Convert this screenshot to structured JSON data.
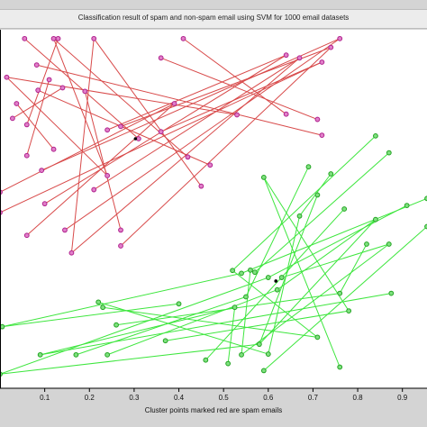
{
  "window": {
    "title": "Classification result of spam and non-spam email using SVM for 1000 email datasets"
  },
  "chart_data": {
    "type": "scatter",
    "title": "Classification result of spam and non-spam email using SVM for 1000 email datasets",
    "xlabel": "Cluster points marked red are spam emails",
    "ylabel": "",
    "xlim": [
      0.0,
      0.955
    ],
    "ylim": [
      0.0,
      1.0
    ],
    "xticks": [
      "0.1",
      "0.2",
      "0.3",
      "0.4",
      "0.5",
      "0.6",
      "0.7",
      "0.8",
      "0.9"
    ],
    "grid": false,
    "colors": {
      "spam_line": "#d84a4a",
      "spam_point": "#b0208e",
      "ham_line": "#3ee63e",
      "ham_point": "#22a322",
      "centroid": "#000000"
    },
    "series": [
      {
        "class": "spam",
        "points": [
          [
            0.055,
            0.985
          ],
          [
            0.13,
            0.985
          ],
          [
            0.21,
            0.985
          ],
          [
            0.12,
            0.985
          ],
          [
            0.41,
            0.985
          ],
          [
            0.76,
            0.985
          ],
          [
            0.74,
            0.96
          ],
          [
            0.082,
            0.91
          ],
          [
            0.64,
            0.938
          ],
          [
            0.36,
            0.93
          ],
          [
            0.67,
            0.93
          ],
          [
            0.72,
            0.918
          ],
          [
            0.015,
            0.875
          ],
          [
            0.037,
            0.8
          ],
          [
            0.11,
            0.868
          ],
          [
            0.14,
            0.845
          ],
          [
            0.085,
            0.838
          ],
          [
            0.19,
            0.835
          ],
          [
            0.39,
            0.8
          ],
          [
            0.64,
            0.77
          ],
          [
            0.53,
            0.768
          ],
          [
            0.71,
            0.755
          ],
          [
            0.028,
            0.758
          ],
          [
            0.06,
            0.74
          ],
          [
            0.27,
            0.735
          ],
          [
            0.24,
            0.725
          ],
          [
            0.36,
            0.72
          ],
          [
            0.31,
            0.7
          ],
          [
            0.72,
            0.71
          ],
          [
            0.12,
            0.67
          ],
          [
            0.06,
            0.652
          ],
          [
            0.42,
            0.648
          ],
          [
            0.47,
            0.625
          ],
          [
            0.093,
            0.61
          ],
          [
            0.45,
            0.565
          ],
          [
            0.0,
            0.548
          ],
          [
            0.21,
            0.555
          ],
          [
            0.0,
            0.49
          ],
          [
            0.27,
            0.44
          ],
          [
            0.06,
            0.425
          ],
          [
            0.145,
            0.44
          ],
          [
            0.27,
            0.395
          ],
          [
            0.16,
            0.375
          ],
          [
            0.1,
            0.515
          ],
          [
            0.24,
            0.595
          ]
        ],
        "segments": [
          [
            0,
            27
          ],
          [
            1,
            23
          ],
          [
            2,
            34
          ],
          [
            3,
            31
          ],
          [
            4,
            19
          ],
          [
            5,
            33
          ],
          [
            6,
            24
          ],
          [
            7,
            28
          ],
          [
            8,
            25
          ],
          [
            9,
            21
          ],
          [
            10,
            36
          ],
          [
            11,
            26
          ],
          [
            12,
            20
          ],
          [
            13,
            29
          ],
          [
            14,
            30
          ],
          [
            15,
            22
          ],
          [
            16,
            32
          ],
          [
            17,
            38
          ],
          [
            18,
            39
          ],
          [
            40,
            5
          ],
          [
            41,
            6
          ],
          [
            42,
            10
          ],
          [
            43,
            8
          ],
          [
            44,
            12
          ],
          [
            45,
            14
          ],
          [
            37,
            11
          ],
          [
            35,
            18
          ],
          [
            2,
            42
          ],
          [
            1,
            45
          ],
          [
            3,
            44
          ]
        ],
        "centroid": [
          0.303,
          0.7
        ]
      },
      {
        "class": "non-spam",
        "points": [
          [
            0.84,
            0.708
          ],
          [
            0.87,
            0.66
          ],
          [
            0.69,
            0.62
          ],
          [
            0.59,
            0.59
          ],
          [
            0.71,
            0.54
          ],
          [
            0.74,
            0.6
          ],
          [
            0.77,
            0.5
          ],
          [
            0.84,
            0.47
          ],
          [
            0.91,
            0.51
          ],
          [
            0.955,
            0.53
          ],
          [
            0.955,
            0.45
          ],
          [
            0.87,
            0.4
          ],
          [
            0.82,
            0.4
          ],
          [
            0.67,
            0.48
          ],
          [
            0.52,
            0.325
          ],
          [
            0.56,
            0.326
          ],
          [
            0.54,
            0.317
          ],
          [
            0.6,
            0.305
          ],
          [
            0.63,
            0.305
          ],
          [
            0.57,
            0.32
          ],
          [
            0.525,
            0.22
          ],
          [
            0.55,
            0.25
          ],
          [
            0.62,
            0.27
          ],
          [
            0.4,
            0.23
          ],
          [
            0.22,
            0.235
          ],
          [
            0.76,
            0.26
          ],
          [
            0.78,
            0.21
          ],
          [
            0.71,
            0.135
          ],
          [
            0.58,
            0.115
          ],
          [
            0.6,
            0.087
          ],
          [
            0.54,
            0.085
          ],
          [
            0.46,
            0.07
          ],
          [
            0.51,
            0.06
          ],
          [
            0.59,
            0.04
          ],
          [
            0.17,
            0.085
          ],
          [
            0.09,
            0.085
          ],
          [
            0.24,
            0.085
          ],
          [
            0.26,
            0.17
          ],
          [
            0.005,
            0.165
          ],
          [
            0.0,
            0.03
          ],
          [
            0.37,
            0.125
          ],
          [
            0.23,
            0.22
          ],
          [
            0.76,
            0.05
          ],
          [
            0.875,
            0.26
          ]
        ],
        "segments": [
          [
            0,
            14
          ],
          [
            1,
            19
          ],
          [
            2,
            21
          ],
          [
            3,
            26
          ],
          [
            4,
            28
          ],
          [
            5,
            13
          ],
          [
            6,
            31
          ],
          [
            7,
            22
          ],
          [
            8,
            17
          ],
          [
            9,
            16
          ],
          [
            10,
            33
          ],
          [
            11,
            18
          ],
          [
            12,
            25
          ],
          [
            13,
            29
          ],
          [
            14,
            27
          ],
          [
            15,
            30
          ],
          [
            16,
            38
          ],
          [
            17,
            39
          ],
          [
            20,
            35
          ],
          [
            21,
            34
          ],
          [
            22,
            36
          ],
          [
            23,
            38
          ],
          [
            24,
            29
          ],
          [
            25,
            37
          ],
          [
            26,
            40
          ],
          [
            27,
            41
          ],
          [
            28,
            39
          ],
          [
            42,
            3
          ],
          [
            43,
            35
          ],
          [
            32,
            20
          ],
          [
            11,
            30
          ],
          [
            7,
            28
          ]
        ],
        "centroid": [
          0.617,
          0.295
        ]
      }
    ]
  }
}
